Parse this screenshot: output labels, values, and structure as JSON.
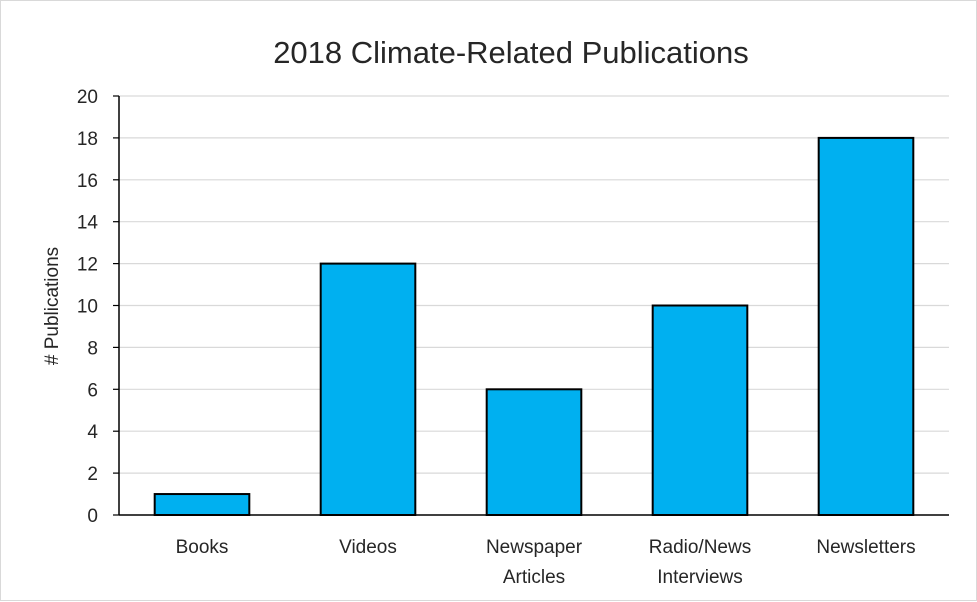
{
  "chart_data": {
    "type": "bar",
    "title": "2018 Climate-Related Publications",
    "xlabel": "",
    "ylabel": "# Publications",
    "categories": [
      "Books",
      "Videos",
      "Newspaper\nArticles",
      "Radio/News\nInterviews",
      "Newsletters"
    ],
    "values": [
      1,
      12,
      6,
      10,
      18
    ],
    "ylim": [
      0,
      20
    ],
    "ytick_step": 2,
    "yticks": [
      "0",
      "2",
      "4",
      "6",
      "8",
      "10",
      "12",
      "14",
      "16",
      "18",
      "20"
    ],
    "grid": true,
    "legend": "none",
    "colors": {
      "bar_fill": "#00b0f0",
      "bar_stroke": "#000000",
      "grid": "#d9d9d9",
      "axis": "#000000",
      "text": "#262626"
    }
  }
}
